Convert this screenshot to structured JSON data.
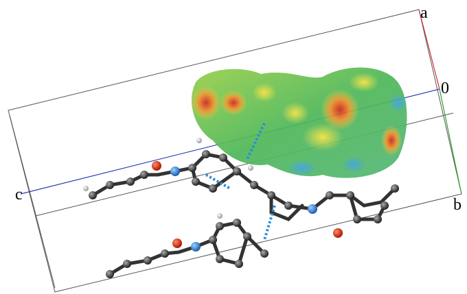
{
  "axis_labels": {
    "a": "a",
    "origin": "0",
    "c": "c",
    "b": "b"
  }
}
